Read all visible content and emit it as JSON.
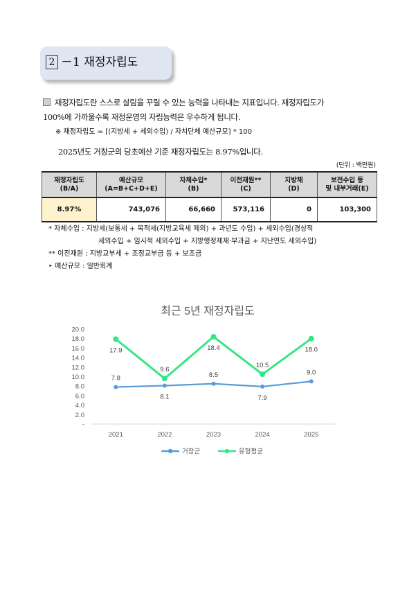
{
  "section": {
    "number": "2",
    "title": "－1 재정자립도"
  },
  "intro": {
    "line1": "재정자립도란 스스로 살림을 꾸릴 수 있는 능력을 나타내는 지표입니다. 재정자립도가",
    "line2": "100%에 가까울수록 재정운영의 자립능력은 우수하게 됩니다.",
    "formula": "※ 재정자립도 = [(지방세 + 세외수입) / 자치단체 예산규모] * 100",
    "rate_sentence": "2025년도 거창군의 당초예산 기준 재정자립도는 8.97%입니다."
  },
  "table": {
    "unit": "(단위 : 백만원)",
    "headers": [
      {
        "line1": "재정자립도",
        "line2": "(B/A)"
      },
      {
        "line1": "예산규모",
        "line2": "(A=B+C+D+E)"
      },
      {
        "line1": "자체수입*",
        "line2": "(B)"
      },
      {
        "line1": "이전재원**",
        "line2": "(C)"
      },
      {
        "line1": "지방채",
        "line2": "(D)"
      },
      {
        "line1": "보전수입 등",
        "line2": "및 내부거래(E)"
      }
    ],
    "row": [
      "8.97%",
      "743,076",
      "66,660",
      "573,116",
      "0",
      "103,300"
    ]
  },
  "notes": {
    "n1a": "* 자체수입 : 지방세(보통세 + 목적세(지방교육세 제외) + 과년도 수입) + 세외수입(경상적",
    "n1b": "세외수입 + 임시적 세외수입 + 지방행정제재·부과금 + 지난연도 세외수입)",
    "n2": "** 이전재원 : 지방교부세 + 조정교부금 등 + 보조금",
    "n3": "‣ 예산규모 : 일반회계"
  },
  "chart_data": {
    "type": "line",
    "title": "최근 5년 재정자립도",
    "x": [
      "2021",
      "2022",
      "2023",
      "2024",
      "2025"
    ],
    "y_ticks": [
      "-",
      "2.0",
      "4.0",
      "6.0",
      "8.0",
      "10.0",
      "12.0",
      "14.0",
      "16.0",
      "18.0",
      "20.0"
    ],
    "ylim": [
      0,
      20
    ],
    "series": [
      {
        "name": "거창군",
        "color": "#5b9bd5",
        "values": [
          7.8,
          8.1,
          8.5,
          7.9,
          9.0
        ],
        "labels": [
          "7.8",
          "8.1",
          "8.5",
          "7.9",
          "9.0"
        ],
        "label_pos": [
          "above",
          "below",
          "above",
          "below",
          "above"
        ]
      },
      {
        "name": "유형평균",
        "color": "#33e686",
        "values": [
          17.9,
          9.6,
          18.4,
          10.5,
          18.0
        ],
        "labels": [
          "17.9",
          "9.6",
          "18.4",
          "10.5",
          "18.0"
        ],
        "label_pos": [
          "below",
          "above",
          "below",
          "above",
          "below"
        ]
      }
    ],
    "legend": "bottom",
    "grid": false
  }
}
